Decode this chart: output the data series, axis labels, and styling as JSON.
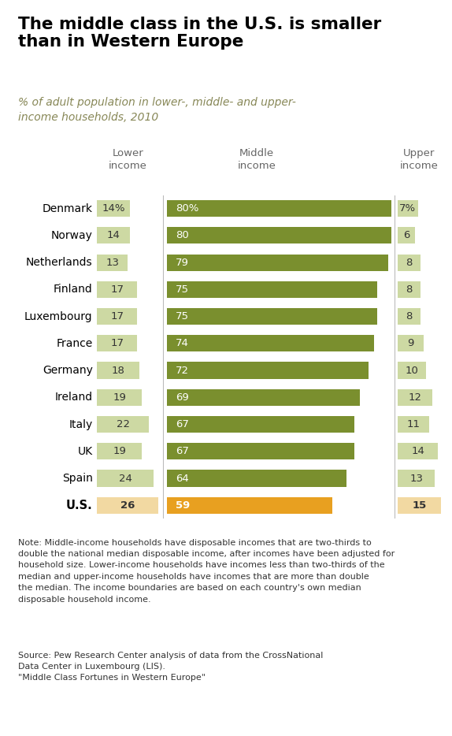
{
  "title": "The middle class in the U.S. is smaller\nthan in Western Europe",
  "subtitle": "% of adult population in lower-, middle- and upper-\nincome households, 2010",
  "countries": [
    "Denmark",
    "Norway",
    "Netherlands",
    "Finland",
    "Luxembourg",
    "France",
    "Germany",
    "Ireland",
    "Italy",
    "UK",
    "Spain",
    "U.S."
  ],
  "lower": [
    14,
    14,
    13,
    17,
    17,
    17,
    18,
    19,
    22,
    19,
    24,
    26
  ],
  "middle": [
    80,
    80,
    79,
    75,
    75,
    74,
    72,
    69,
    67,
    67,
    64,
    59
  ],
  "upper": [
    7,
    6,
    8,
    8,
    8,
    9,
    10,
    12,
    11,
    14,
    13,
    15
  ],
  "lower_labels": [
    "14%",
    "14",
    "13",
    "17",
    "17",
    "17",
    "18",
    "19",
    "22",
    "19",
    "24",
    "26"
  ],
  "middle_labels": [
    "80%",
    "80",
    "79",
    "75",
    "75",
    "74",
    "72",
    "69",
    "67",
    "67",
    "64",
    "59"
  ],
  "upper_labels": [
    "7%",
    "6",
    "8",
    "8",
    "8",
    "9",
    "10",
    "12",
    "11",
    "14",
    "13",
    "15"
  ],
  "color_lower_eu": "#cdd9a3",
  "color_middle_eu": "#7a8f2e",
  "color_upper_eu": "#cdd9a3",
  "color_lower_us": "#f2d9a2",
  "color_middle_us": "#e8a020",
  "color_upper_us": "#f2d9a2",
  "note": "Note: Middle-income households have disposable incomes that are two-thirds to\ndouble the national median disposable income, after incomes have been adjusted for\nhousehold size. Lower-income households have incomes less than two-thirds of the\nmedian and upper-income households have incomes that are more than double\nthe median. The income boundaries are based on each country's own median\ndisposable household income.",
  "source": "Source: Pew Research Center analysis of data from the CrossNational\nData Center in Luxembourg (LIS).\n\"Middle Class Fortunes in Western Europe\""
}
